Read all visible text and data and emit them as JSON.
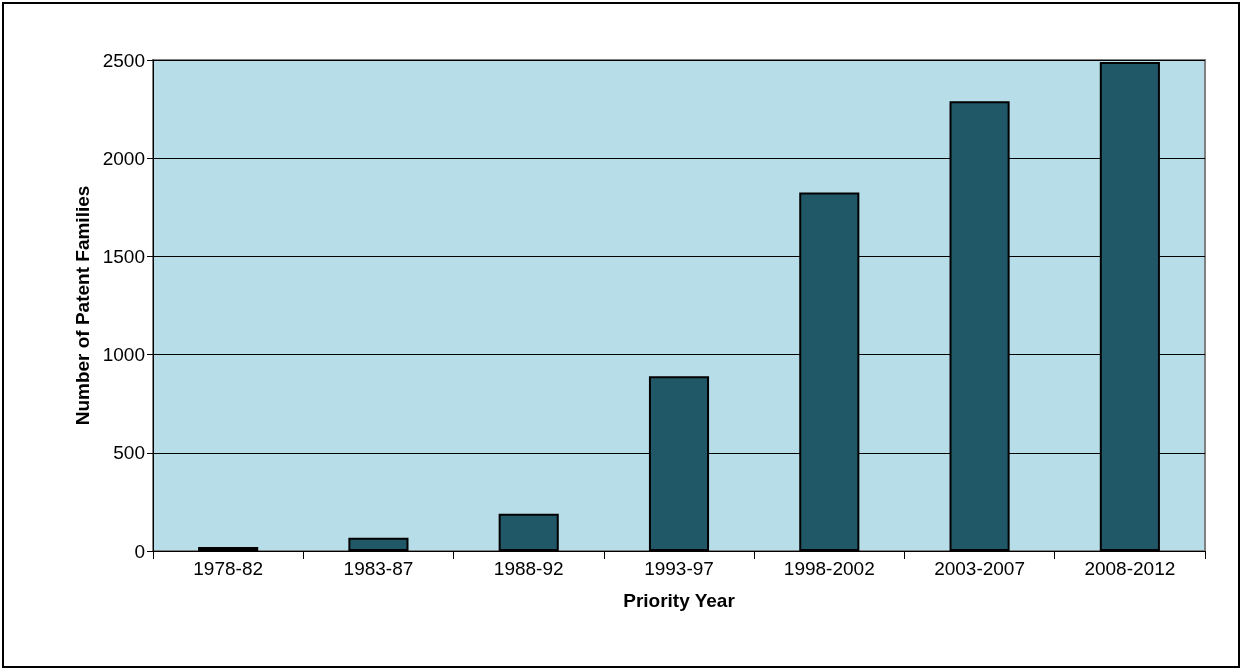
{
  "chart_data": {
    "type": "bar",
    "xlabel": "Priority Year",
    "ylabel": "Number of Patent Families",
    "categories": [
      "1978-82",
      "1983-87",
      "1988-92",
      "1993-97",
      "1998-2002",
      "2003-2007",
      "2008-2012"
    ],
    "values": [
      20,
      68,
      190,
      890,
      1825,
      2290,
      2490
    ],
    "color": "#215868",
    "ylim": [
      0,
      2500
    ],
    "yticks": [
      0,
      500,
      1000,
      1500,
      2000,
      2500
    ],
    "grid": "y"
  }
}
